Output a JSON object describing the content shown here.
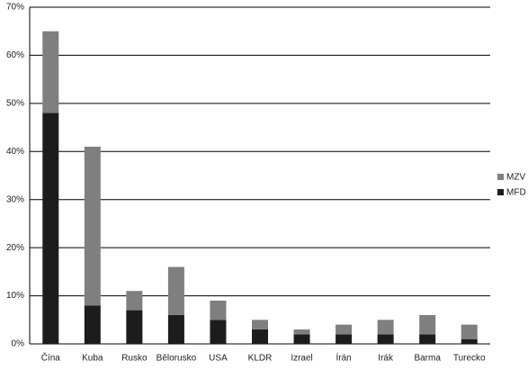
{
  "chart_data": {
    "type": "stacked_bar",
    "categories": [
      "Čína",
      "Kuba",
      "Rusko",
      "Bělorusko",
      "USA",
      "KLDR",
      "Izrael",
      "Írán",
      "Irák",
      "Barma",
      "Turecko"
    ],
    "series": [
      {
        "name": "MFD",
        "color": "#1c1c1c",
        "values": [
          48,
          8,
          7,
          6,
          5,
          3,
          2,
          2,
          2,
          2,
          1
        ]
      },
      {
        "name": "MZV",
        "color": "#7f7f7f",
        "values": [
          17,
          33,
          4,
          10,
          4,
          2,
          1,
          2,
          3,
          4,
          3
        ]
      }
    ],
    "ylim": [
      0,
      70
    ],
    "yticks": [
      {
        "value": 0,
        "label": "0%"
      },
      {
        "value": 10,
        "label": "10%"
      },
      {
        "value": 20,
        "label": "20%"
      },
      {
        "value": 30,
        "label": "30%"
      },
      {
        "value": 40,
        "label": "40%"
      },
      {
        "value": 50,
        "label": "50%"
      },
      {
        "value": 60,
        "label": "60%"
      },
      {
        "value": 70,
        "label": "70%"
      }
    ],
    "grid": true,
    "legend": "right"
  }
}
